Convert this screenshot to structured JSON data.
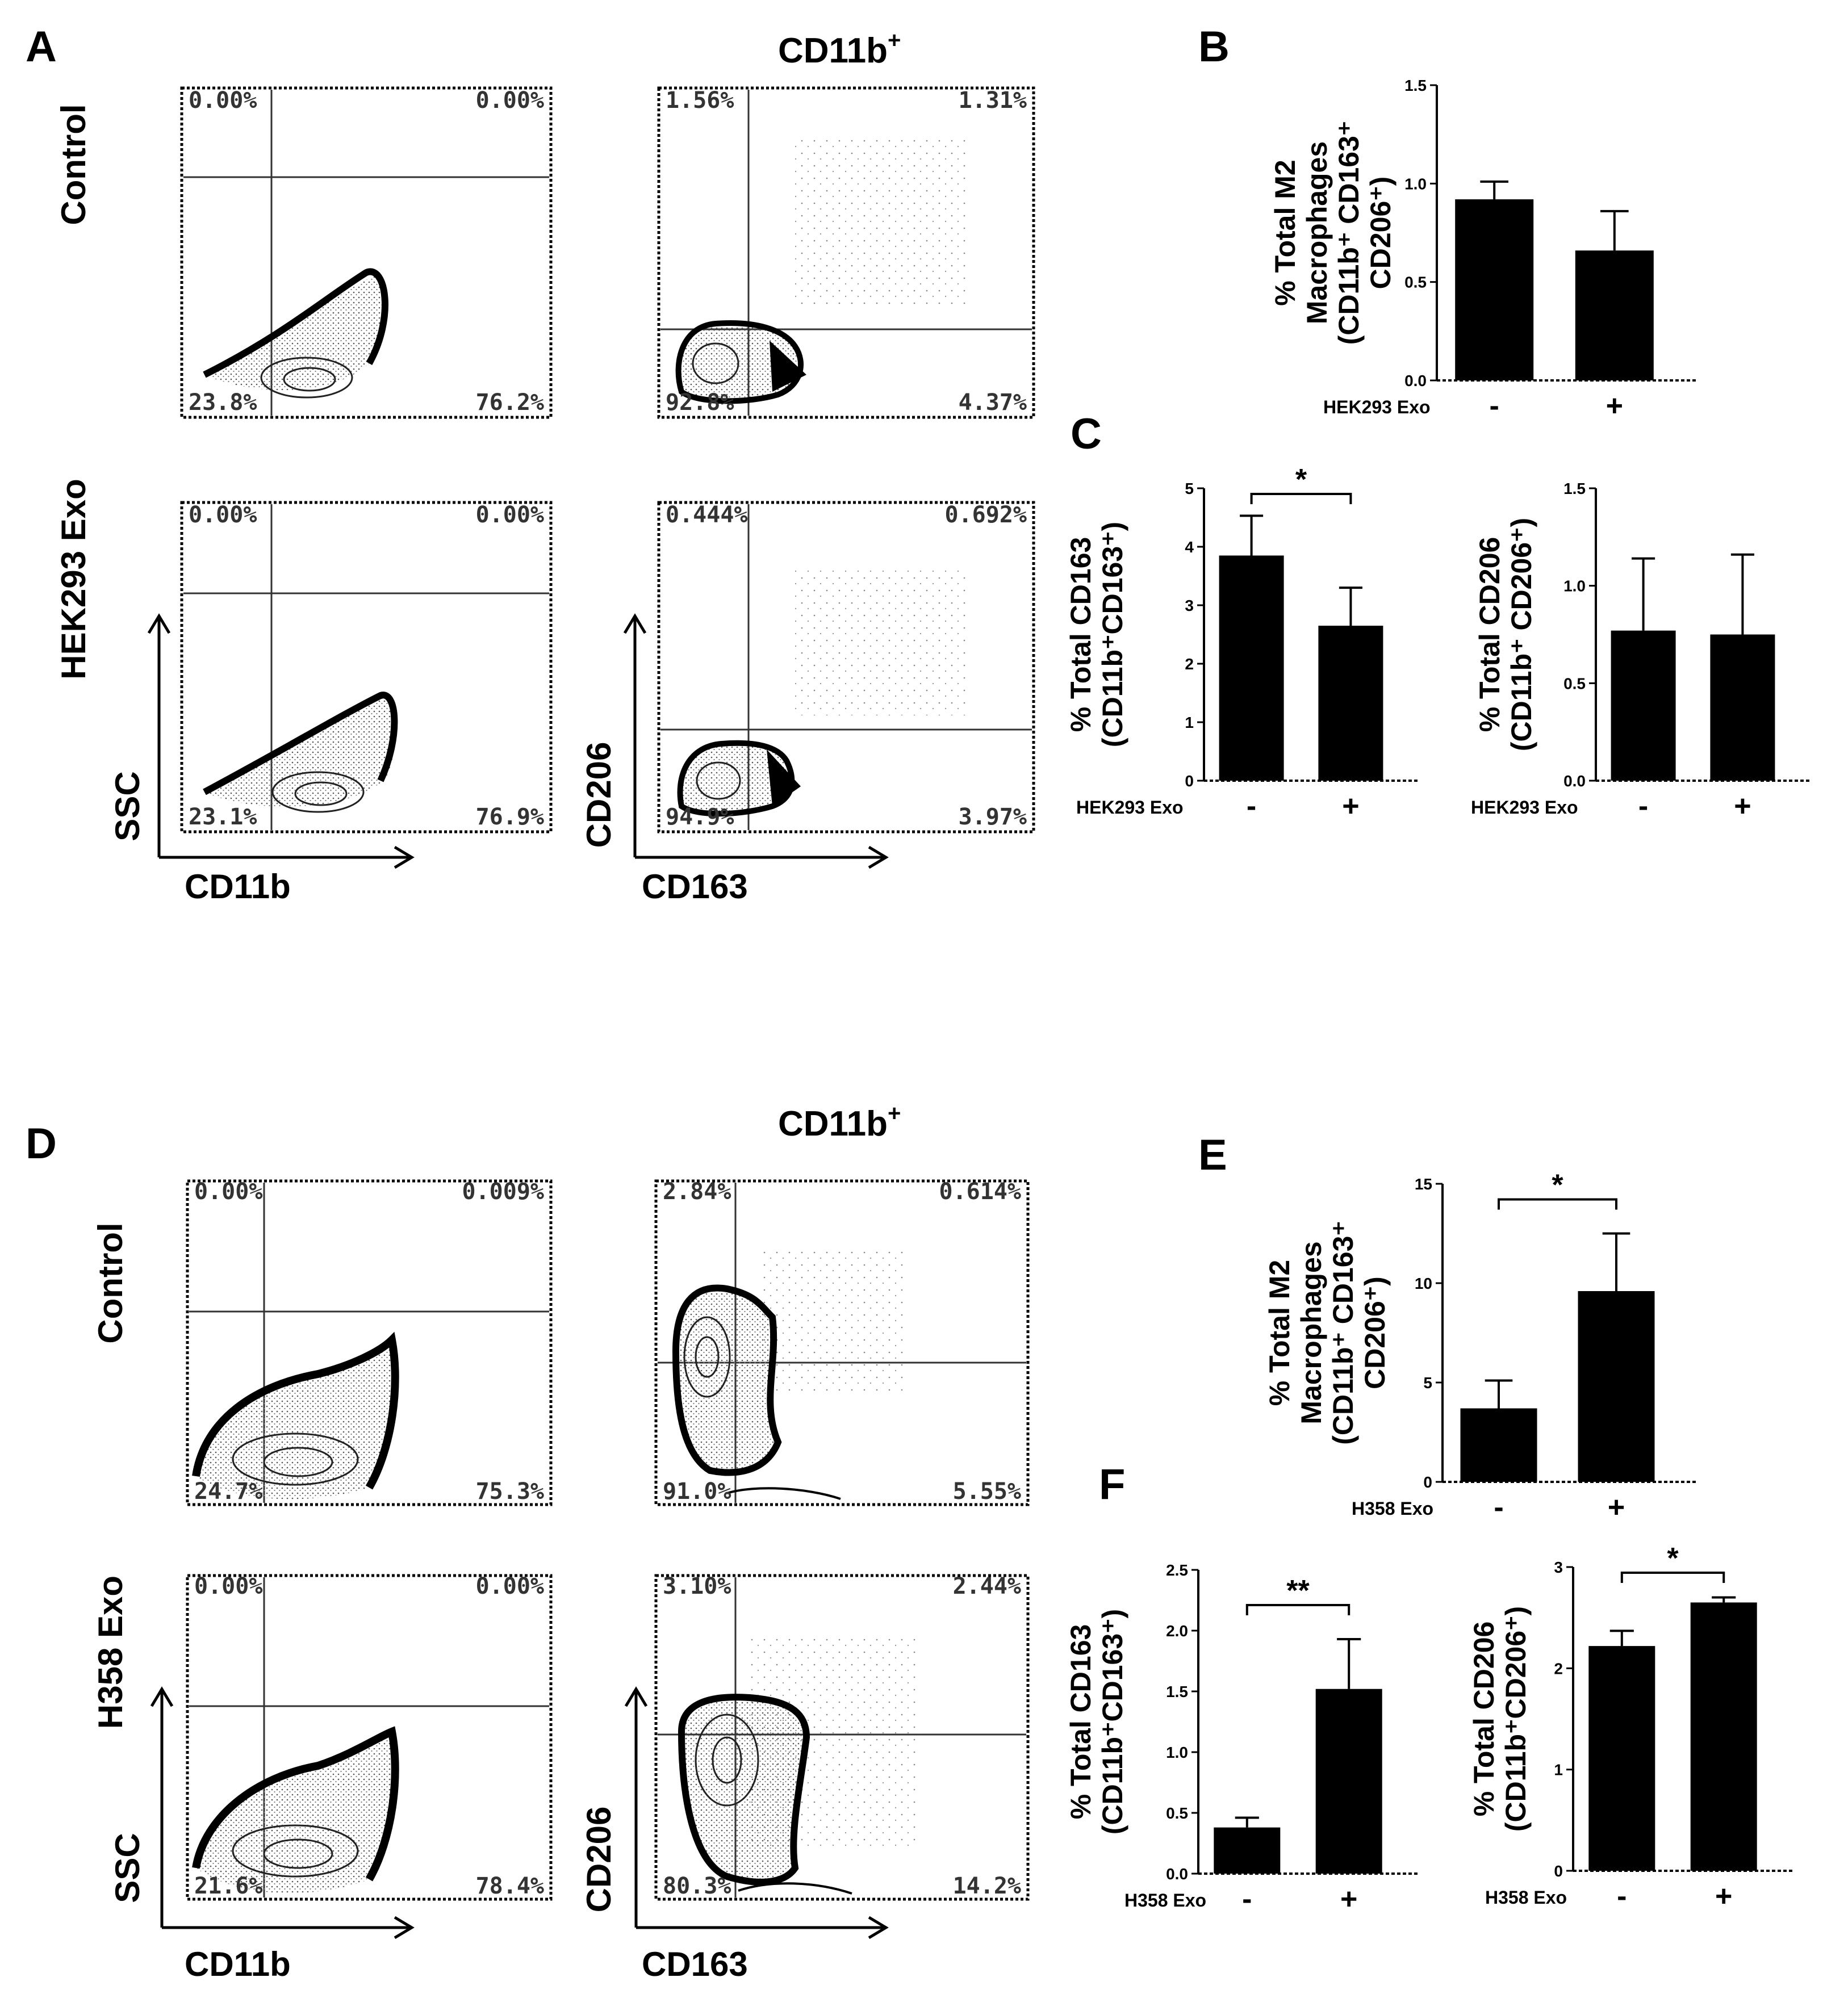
{
  "figure": {
    "part1": {
      "panel_a": {
        "label": "A",
        "gate_title": "CD11b",
        "gate_sup": "+",
        "rows": [
          {
            "name": "Control",
            "plots": [
              [
                "0.00%",
                "0.00%",
                "23.8%",
                "76.2%"
              ],
              [
                "1.56%",
                "1.31%",
                "92.8%",
                "4.37%"
              ]
            ]
          },
          {
            "name": "HEK293 Exo",
            "plots": [
              [
                "0.00%",
                "0.00%",
                "23.1%",
                "76.9%"
              ],
              [
                "0.444%",
                "0.692%",
                "94.9%",
                "3.97%"
              ]
            ]
          }
        ],
        "axes_left": {
          "x": "CD11b",
          "y": "SSC"
        },
        "axes_right": {
          "x": "CD163",
          "y": "CD206"
        }
      },
      "panel_b": {
        "label": "B"
      },
      "panel_c": {
        "label": "C"
      }
    },
    "part2": {
      "panel_d": {
        "label": "D",
        "gate_title": "CD11b",
        "gate_sup": "+",
        "rows": [
          {
            "name": "Control",
            "plots": [
              [
                "0.00%",
                "0.009%",
                "24.7%",
                "75.3%"
              ],
              [
                "2.84%",
                "0.614%",
                "91.0%",
                "5.55%"
              ]
            ]
          },
          {
            "name": "H358 Exo",
            "plots": [
              [
                "0.00%",
                "0.00%",
                "21.6%",
                "78.4%"
              ],
              [
                "3.10%",
                "2.44%",
                "80.3%",
                "14.2%"
              ]
            ]
          }
        ],
        "axes_left": {
          "x": "CD11b",
          "y": "SSC"
        },
        "axes_right": {
          "x": "CD163",
          "y": "CD206"
        }
      },
      "panel_e": {
        "label": "E"
      },
      "panel_f": {
        "label": "F"
      }
    }
  },
  "chart_data": [
    {
      "id": "B",
      "type": "bar",
      "categories": [
        "-",
        "+"
      ],
      "values": [
        0.92,
        0.66
      ],
      "errors": [
        0.09,
        0.2
      ],
      "ylim": [
        0,
        1.5
      ],
      "yticks": [
        "0.0",
        "0.5",
        "1.0",
        "1.5"
      ],
      "ytick_values": [
        0,
        0.5,
        1.0,
        1.5
      ],
      "ylabel_lines": [
        "% Total M2",
        "Macrophages",
        "(CD11b⁺ CD163⁺",
        "CD206⁺)"
      ],
      "xlabel": "HEK293 Exo",
      "significance": null
    },
    {
      "id": "C1",
      "type": "bar",
      "categories": [
        "-",
        "+"
      ],
      "values": [
        3.85,
        2.65
      ],
      "errors": [
        0.68,
        0.65
      ],
      "ylim": [
        0,
        5
      ],
      "yticks": [
        "0",
        "1",
        "2",
        "3",
        "4",
        "5"
      ],
      "ytick_values": [
        0,
        1,
        2,
        3,
        4,
        5
      ],
      "ylabel_lines": [
        "% Total CD163",
        "(CD11b⁺CD163⁺)"
      ],
      "xlabel": "HEK293 Exo",
      "significance": "*"
    },
    {
      "id": "C2",
      "type": "bar",
      "categories": [
        "-",
        "+"
      ],
      "values": [
        0.77,
        0.75
      ],
      "errors": [
        0.37,
        0.41
      ],
      "ylim": [
        0,
        1.5
      ],
      "yticks": [
        "0.0",
        "0.5",
        "1.0",
        "1.5"
      ],
      "ytick_values": [
        0,
        0.5,
        1.0,
        1.5
      ],
      "ylabel_lines": [
        "% Total CD206",
        "(CD11b⁺ CD206⁺)"
      ],
      "xlabel": "HEK293 Exo",
      "significance": null
    },
    {
      "id": "E",
      "type": "bar",
      "categories": [
        "-",
        "+"
      ],
      "values": [
        3.7,
        9.6
      ],
      "errors": [
        1.4,
        2.9
      ],
      "ylim": [
        0,
        15
      ],
      "yticks": [
        "0",
        "5",
        "10",
        "15"
      ],
      "ytick_values": [
        0,
        5,
        10,
        15
      ],
      "ylabel_lines": [
        "% Total M2",
        "Macrophages",
        "(CD11b⁺ CD163⁺",
        "CD206⁺)"
      ],
      "xlabel": "H358 Exo",
      "significance": "*"
    },
    {
      "id": "F1",
      "type": "bar",
      "categories": [
        "-",
        "+"
      ],
      "values": [
        0.38,
        1.52
      ],
      "errors": [
        0.08,
        0.41
      ],
      "ylim": [
        0,
        2.5
      ],
      "yticks": [
        "0.0",
        "0.5",
        "1.0",
        "1.5",
        "2.0",
        "2.5"
      ],
      "ytick_values": [
        0,
        0.5,
        1.0,
        1.5,
        2.0,
        2.5
      ],
      "ylabel_lines": [
        "% Total CD163",
        "(CD11b⁺CD163⁺)"
      ],
      "xlabel": "H358 Exo",
      "significance": "**"
    },
    {
      "id": "F2",
      "type": "bar",
      "categories": [
        "-",
        "+"
      ],
      "values": [
        2.22,
        2.65
      ],
      "errors": [
        0.15,
        0.05
      ],
      "ylim": [
        0,
        3
      ],
      "yticks": [
        "0",
        "1",
        "2",
        "3"
      ],
      "ytick_values": [
        0,
        1,
        2,
        3
      ],
      "ylabel_lines": [
        "% Total CD206",
        "(CD11b⁺CD206⁺)"
      ],
      "xlabel": "H358 Exo",
      "significance": "*"
    }
  ]
}
